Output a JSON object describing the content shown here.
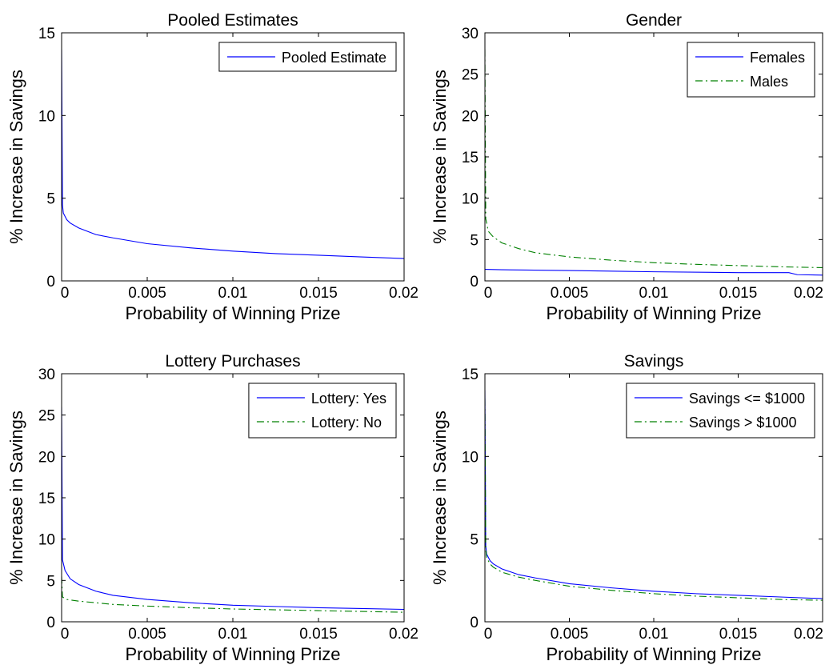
{
  "colors": {
    "series_1": "#0000ff",
    "series_2": "#008000",
    "axes": "#000000",
    "background": "#ffffff"
  },
  "chart_data": [
    {
      "type": "line",
      "title": "Pooled Estimates",
      "xlabel": "Probability of Winning Prize",
      "ylabel": "% Increase in Savings",
      "xlim": [
        0,
        0.02
      ],
      "ylim": [
        0,
        15
      ],
      "xticks": [
        0,
        0.005,
        0.01,
        0.015,
        0.02
      ],
      "yticks": [
        0,
        5,
        10,
        15
      ],
      "xtick_labels": [
        "0",
        "0.005",
        "0.01",
        "0.015",
        "0.02"
      ],
      "ytick_labels": [
        "0",
        "5",
        "10",
        "15"
      ],
      "grid": false,
      "legend": "top-right",
      "series": [
        {
          "name": "Pooled Estimate",
          "color": "#0000ff",
          "style": "solid",
          "x": [
            0,
            5e-05,
            0.0001,
            0.0003,
            0.0005,
            0.001,
            0.002,
            0.003,
            0.005,
            0.0075,
            0.01,
            0.0125,
            0.015,
            0.0175,
            0.02
          ],
          "y": [
            14,
            4.6,
            4.1,
            3.7,
            3.5,
            3.2,
            2.8,
            2.6,
            2.25,
            2.0,
            1.8,
            1.65,
            1.55,
            1.45,
            1.35
          ]
        }
      ]
    },
    {
      "type": "line",
      "title": "Gender",
      "xlabel": "Probability of Winning Prize",
      "ylabel": "% Increase in Savings",
      "xlim": [
        0,
        0.02
      ],
      "ylim": [
        0,
        30
      ],
      "xticks": [
        0,
        0.005,
        0.01,
        0.015,
        0.02
      ],
      "yticks": [
        0,
        5,
        10,
        15,
        20,
        25,
        30
      ],
      "xtick_labels": [
        "0",
        "0.005",
        "0.01",
        "0.015",
        "0.02"
      ],
      "ytick_labels": [
        "0",
        "5",
        "10",
        "15",
        "20",
        "25",
        "30"
      ],
      "grid": false,
      "legend": "top-right",
      "series": [
        {
          "name": "Females",
          "color": "#0000ff",
          "style": "solid",
          "x": [
            0,
            0.001,
            0.005,
            0.01,
            0.015,
            0.018,
            0.0185,
            0.02
          ],
          "y": [
            1.4,
            1.35,
            1.25,
            1.1,
            1.0,
            1.0,
            0.75,
            0.7
          ]
        },
        {
          "name": "Males",
          "color": "#008000",
          "style": "dashdot",
          "x": [
            0,
            5e-05,
            0.0002,
            0.0005,
            0.001,
            0.002,
            0.003,
            0.005,
            0.0075,
            0.01,
            0.0125,
            0.015,
            0.0175,
            0.02
          ],
          "y": [
            28,
            7.5,
            6.0,
            5.3,
            4.6,
            3.9,
            3.4,
            2.9,
            2.5,
            2.2,
            2.0,
            1.85,
            1.7,
            1.6
          ]
        }
      ]
    },
    {
      "type": "line",
      "title": "Lottery Purchases",
      "xlabel": "Probability of Winning Prize",
      "ylabel": "% Increase in Savings",
      "xlim": [
        0,
        0.02
      ],
      "ylim": [
        0,
        30
      ],
      "xticks": [
        0,
        0.005,
        0.01,
        0.015,
        0.02
      ],
      "yticks": [
        0,
        5,
        10,
        15,
        20,
        25,
        30
      ],
      "xtick_labels": [
        "0",
        "0.005",
        "0.01",
        "0.015",
        "0.02"
      ],
      "ytick_labels": [
        "0",
        "5",
        "10",
        "15",
        "20",
        "25",
        "30"
      ],
      "grid": false,
      "legend": "top-right",
      "series": [
        {
          "name": "Lottery: Yes",
          "color": "#0000ff",
          "style": "solid",
          "x": [
            0,
            5e-05,
            0.0002,
            0.0005,
            0.001,
            0.002,
            0.003,
            0.005,
            0.0075,
            0.01,
            0.0125,
            0.015,
            0.0175,
            0.02
          ],
          "y": [
            26,
            7.5,
            6.2,
            5.2,
            4.5,
            3.7,
            3.2,
            2.7,
            2.3,
            2.0,
            1.85,
            1.7,
            1.6,
            1.5
          ]
        },
        {
          "name": "Lottery: No",
          "color": "#008000",
          "style": "dashdot",
          "x": [
            0,
            5e-05,
            0.0003,
            0.001,
            0.002,
            0.003,
            0.005,
            0.0075,
            0.01,
            0.0125,
            0.015,
            0.0175,
            0.02
          ],
          "y": [
            5.5,
            3.0,
            2.7,
            2.5,
            2.3,
            2.1,
            1.9,
            1.7,
            1.55,
            1.45,
            1.35,
            1.25,
            1.15
          ]
        }
      ]
    },
    {
      "type": "line",
      "title": "Savings",
      "xlabel": "Probability of Winning Prize",
      "ylabel": "% Increase in Savings",
      "xlim": [
        0,
        0.02
      ],
      "ylim": [
        0,
        15
      ],
      "xticks": [
        0,
        0.005,
        0.01,
        0.015,
        0.02
      ],
      "yticks": [
        0,
        5,
        10,
        15
      ],
      "xtick_labels": [
        "0",
        "0.005",
        "0.01",
        "0.015",
        "0.02"
      ],
      "ytick_labels": [
        "0",
        "5",
        "10",
        "15"
      ],
      "grid": false,
      "legend": "top-right",
      "series": [
        {
          "name": "Savings <= $1000",
          "color": "#0000ff",
          "style": "solid",
          "x": [
            0,
            5e-05,
            0.0001,
            0.0003,
            0.0005,
            0.001,
            0.002,
            0.003,
            0.005,
            0.0075,
            0.01,
            0.0125,
            0.015,
            0.0175,
            0.02
          ],
          "y": [
            14,
            4.6,
            4.1,
            3.7,
            3.5,
            3.2,
            2.85,
            2.65,
            2.3,
            2.05,
            1.85,
            1.7,
            1.6,
            1.5,
            1.4
          ]
        },
        {
          "name": "Savings > $1000",
          "color": "#008000",
          "style": "dashdot",
          "x": [
            0,
            5e-05,
            0.0001,
            0.0003,
            0.0005,
            0.001,
            0.002,
            0.003,
            0.005,
            0.0075,
            0.01,
            0.0125,
            0.015,
            0.0175,
            0.02
          ],
          "y": [
            13.5,
            4.4,
            3.9,
            3.5,
            3.3,
            3.0,
            2.7,
            2.5,
            2.15,
            1.9,
            1.7,
            1.55,
            1.45,
            1.35,
            1.3
          ]
        }
      ]
    }
  ]
}
